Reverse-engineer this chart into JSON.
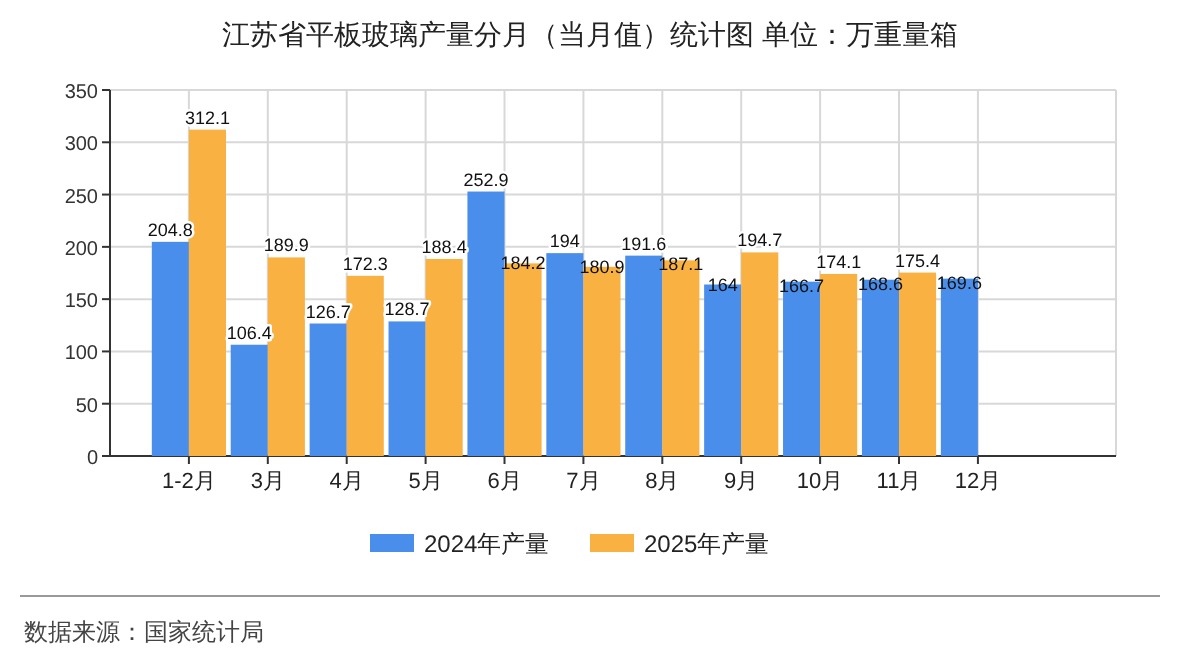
{
  "chart_data": {
    "type": "bar",
    "title": "江苏省平板玻璃产量分月（当月值）统计图 单位：万重量箱",
    "categories": [
      "1-2月",
      "3月",
      "4月",
      "5月",
      "6月",
      "7月",
      "8月",
      "9月",
      "10月",
      "11月",
      "12月"
    ],
    "series": [
      {
        "name": "2024年产量",
        "color": "#4a8eeb",
        "values": [
          204.8,
          106.4,
          126.7,
          128.7,
          252.9,
          194,
          191.6,
          164,
          166.7,
          168.6,
          169.6
        ]
      },
      {
        "name": "2025年产量",
        "color": "#f9b142",
        "values": [
          312.1,
          189.9,
          172.3,
          188.4,
          184.2,
          180.9,
          187.1,
          194.7,
          174.1,
          175.4,
          null
        ]
      }
    ],
    "ylim": [
      0,
      350
    ],
    "yticks": [
      0,
      50,
      100,
      150,
      200,
      250,
      300,
      350
    ],
    "grid": true,
    "legend": "bottom",
    "data_labels": true,
    "annotations": [
      "数据来源：国家统计局"
    ]
  }
}
